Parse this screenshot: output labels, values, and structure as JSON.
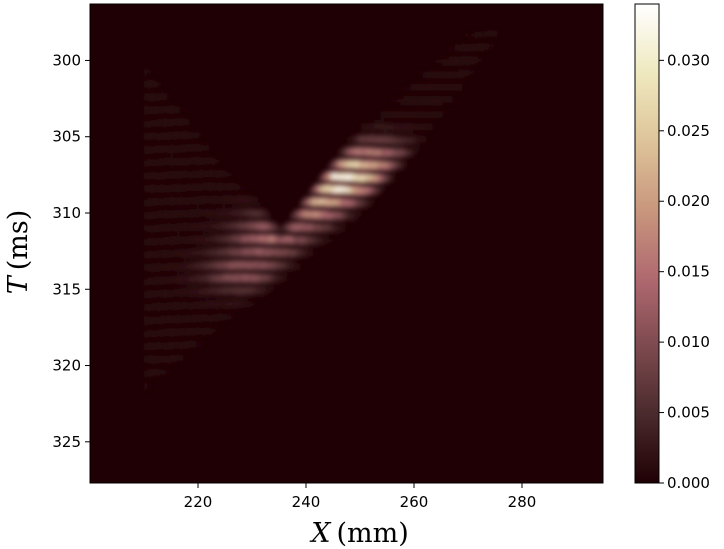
{
  "chart_data": {
    "type": "heatmap",
    "title": "",
    "xlabel": "X (mm)",
    "xlabel_var": "X",
    "xlabel_unit": "(mm)",
    "ylabel": "T (ms)",
    "ylabel_var": "T",
    "ylabel_unit": "(ms)",
    "xlim": [
      200,
      295
    ],
    "ylim": [
      296.3,
      327.7
    ],
    "y_inverted": true,
    "x_ticks": [
      220,
      240,
      260,
      280
    ],
    "y_ticks": [
      300,
      305,
      310,
      315,
      320,
      325
    ],
    "colorbar": {
      "range": [
        0.0,
        0.034
      ],
      "ticks": [
        "0.000",
        "0.005",
        "0.010",
        "0.015",
        "0.020",
        "0.025",
        "0.030"
      ],
      "tick_values": [
        0.0,
        0.005,
        0.01,
        0.015,
        0.02,
        0.025,
        0.03
      ],
      "colormap": "pink",
      "colormap_stops": [
        "#1f0004",
        "#4a2a2c",
        "#7d4a4f",
        "#b06a70",
        "#c9977d",
        "#dec49a",
        "#efe9bf",
        "#ffffff"
      ]
    },
    "grid": false,
    "features": {
      "band_top_edge": [
        [
          235,
          311
        ],
        [
          250,
          304
        ],
        [
          268,
          298
        ],
        [
          275,
          297
        ]
      ],
      "band_bottom_edge": [
        [
          210,
          322
        ],
        [
          230,
          316
        ],
        [
          250,
          310
        ],
        [
          265,
          304
        ],
        [
          275,
          299
        ]
      ],
      "peak": {
        "x": 246,
        "t": 307.7,
        "value": 0.033
      },
      "secondary_peaks": [
        {
          "x": 240,
          "t": 309.5,
          "value": 0.02
        },
        {
          "x": 233,
          "t": 311.5,
          "value": 0.015
        },
        {
          "x": 228,
          "t": 313.8,
          "value": 0.012
        },
        {
          "x": 252,
          "t": 306.2,
          "value": 0.015
        }
      ]
    }
  }
}
